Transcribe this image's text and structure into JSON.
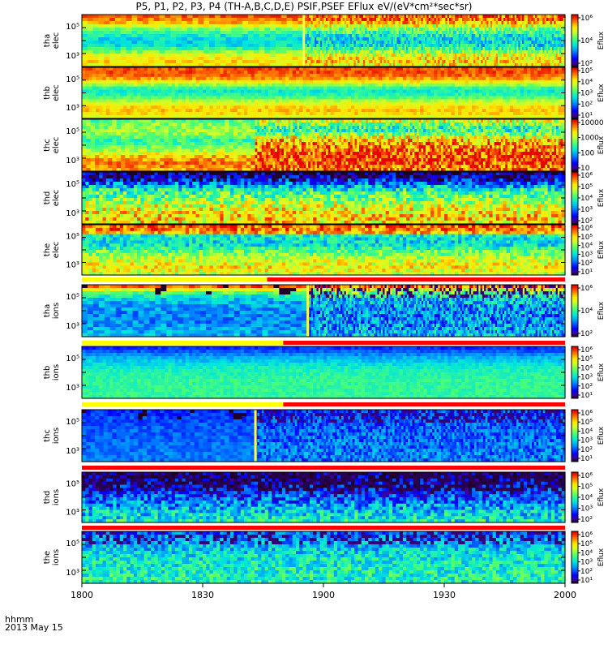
{
  "title": "P5, P1, P2, P3, P4 (TH-A,B,C,D,E) PSIF,PSEF EFlux eV/(eV*cm²*sec*sr)",
  "footer": {
    "time_label": "hhmm",
    "date_label": "2013 May 15"
  },
  "chart_data": {
    "type": "heatmap",
    "x": {
      "label": "hhmm",
      "ticks": [
        "1800",
        "1830",
        "1900",
        "1930",
        "2000"
      ],
      "range_minutes": [
        0,
        120
      ]
    },
    "panels": [
      {
        "id": "tha-elec",
        "ylabel": [
          "tha",
          "elec"
        ],
        "yticks": [
          "10⁵",
          "10³"
        ],
        "cb_label": "Eflux",
        "cb_ticks": [
          "10⁶",
          "10⁴",
          "10²"
        ],
        "mode": 0,
        "change_min": 55,
        "noise": 0.25,
        "profile": [
          0.9,
          0.88,
          0.82,
          0.72,
          0.6,
          0.52,
          0.45,
          0.42,
          0.4,
          0.42,
          0.5,
          0.6,
          0.7,
          0.75,
          0.78,
          0.75
        ]
      },
      {
        "id": "thb-elec",
        "ylabel": [
          "thb",
          "elec"
        ],
        "yticks": [
          "10⁵",
          "10³"
        ],
        "cb_label": "Eflux",
        "cb_ticks": [
          "10⁵",
          "10⁴",
          "10³",
          "10²",
          "10¹"
        ],
        "mode": 0,
        "change_min": -1,
        "noise": 0.1,
        "profile": [
          0.92,
          0.92,
          0.9,
          0.85,
          0.75,
          0.62,
          0.5,
          0.45,
          0.48,
          0.55,
          0.65,
          0.72,
          0.78,
          0.8,
          0.78,
          0.72
        ]
      },
      {
        "id": "thc-elec",
        "ylabel": [
          "thc",
          "elec"
        ],
        "yticks": [
          "10⁵",
          "10³"
        ],
        "cb_label": "Eflux",
        "cb_ticks": [
          "10000",
          "1000",
          "100",
          "10"
        ],
        "mode": 1,
        "change_min": 43,
        "noise": 0.3,
        "profile": [
          0.55,
          0.6,
          0.6,
          0.62,
          0.6,
          0.55,
          0.5,
          0.52,
          0.58,
          0.65,
          0.72,
          0.8,
          0.85,
          0.88,
          0.86,
          0.82
        ],
        "profile_after": [
          0.7,
          0.6,
          0.5,
          0.5,
          0.6,
          0.72,
          0.8,
          0.85,
          0.88,
          0.9,
          0.92,
          0.94,
          0.95,
          0.94,
          0.92,
          0.9
        ]
      },
      {
        "id": "thd-elec",
        "ylabel": [
          "thd",
          "elec"
        ],
        "yticks": [
          "10⁵",
          "10³"
        ],
        "cb_label": "Eflux",
        "cb_ticks": [
          "10⁶",
          "10⁵",
          "10⁴",
          "10³",
          "10²"
        ],
        "mode": 0,
        "change_min": -1,
        "noise": 0.3,
        "profile": [
          0.05,
          0.08,
          0.15,
          0.25,
          0.35,
          0.45,
          0.52,
          0.55,
          0.6,
          0.65,
          0.7,
          0.72,
          0.75,
          0.78,
          0.78,
          0.75
        ]
      },
      {
        "id": "the-elec",
        "ylabel": [
          "the",
          "elec"
        ],
        "yticks": [
          "10⁵",
          "10³"
        ],
        "cb_label": "Eflux",
        "cb_ticks": [
          "10⁶",
          "10⁵",
          "10⁴",
          "10³",
          "10²",
          "10¹"
        ],
        "mode": 0,
        "change_min": -1,
        "noise": 0.22,
        "profile": [
          0.9,
          0.88,
          0.82,
          0.45,
          0.42,
          0.4,
          0.42,
          0.5,
          0.55,
          0.6,
          0.65,
          0.7,
          0.72,
          0.75,
          0.72,
          0.68
        ]
      },
      {
        "id": "tha-ions",
        "ylabel": [
          "tha",
          "ions"
        ],
        "yticks": [
          "10⁵",
          "10³"
        ],
        "cb_label": "Eflux",
        "cb_ticks": [
          "10⁶",
          "10⁴",
          "10²"
        ],
        "mode": 2,
        "change_min": 56,
        "noise": 0.3,
        "profile": [
          0.9,
          0.7,
          0.55,
          0.45,
          0.38,
          0.35,
          0.33,
          0.32,
          0.3,
          0.3,
          0.3,
          0.3,
          0.32,
          0.33,
          0.34,
          0.35
        ]
      },
      {
        "id": "thb-ions",
        "ylabel": [
          "thb",
          "ions"
        ],
        "yticks": [
          "10⁵",
          "10³"
        ],
        "cb_label": "Eflux",
        "cb_ticks": [
          "10⁶",
          "10⁵",
          "10⁴",
          "10³",
          "10²",
          "10¹"
        ],
        "mode": 0,
        "change_min": -1,
        "noise": 0.08,
        "profile": [
          0.2,
          0.25,
          0.3,
          0.35,
          0.38,
          0.42,
          0.45,
          0.47,
          0.48,
          0.49,
          0.5,
          0.5,
          0.5,
          0.5,
          0.5,
          0.5
        ]
      },
      {
        "id": "thc-ions",
        "ylabel": [
          "thc",
          "ions"
        ],
        "yticks": [
          "10⁵",
          "10³"
        ],
        "cb_label": "Eflux",
        "cb_ticks": [
          "10⁶",
          "10⁵",
          "10⁴",
          "10³",
          "10²",
          "10¹"
        ],
        "mode": 2,
        "change_min": 43,
        "noise": 0.2,
        "profile": [
          0.2,
          0.2,
          0.22,
          0.22,
          0.24,
          0.24,
          0.25,
          0.25,
          0.26,
          0.26,
          0.27,
          0.27,
          0.28,
          0.28,
          0.28,
          0.28
        ]
      },
      {
        "id": "thd-ions",
        "ylabel": [
          "thd",
          "ions"
        ],
        "yticks": [
          "10⁵",
          "10³"
        ],
        "cb_label": "Eflux",
        "cb_ticks": [
          "10⁶",
          "10⁵",
          "10⁴",
          "10³",
          "10²"
        ],
        "mode": 3,
        "change_min": -1,
        "noise": 0.28,
        "profile": [
          0.05,
          0.05,
          0.08,
          0.1,
          0.12,
          0.15,
          0.18,
          0.22,
          0.25,
          0.28,
          0.32,
          0.35,
          0.38,
          0.4,
          0.42,
          0.45
        ]
      },
      {
        "id": "the-ions",
        "ylabel": [
          "the",
          "ions"
        ],
        "yticks": [
          "10⁵",
          "10³"
        ],
        "cb_label": "Eflux",
        "cb_ticks": [
          "10⁶",
          "10⁵",
          "10⁴",
          "10³",
          "10²",
          "10¹"
        ],
        "mode": 2,
        "change_min": -1,
        "noise": 0.22,
        "profile": [
          0.25,
          0.28,
          0.3,
          0.33,
          0.35,
          0.38,
          0.4,
          0.42,
          0.43,
          0.44,
          0.45,
          0.46,
          0.46,
          0.47,
          0.47,
          0.47
        ]
      }
    ],
    "mode_bars": [
      {
        "after_panel": 4,
        "yellow_until_min": 46
      },
      {
        "after_panel": 5,
        "yellow_until_min": 50
      },
      {
        "after_panel": 6,
        "yellow_until_min": 50
      },
      {
        "after_panel": 7,
        "yellow_until_min": 0
      },
      {
        "after_panel": 8,
        "yellow_until_min": 0
      }
    ],
    "colors": {
      "mode_slow": "#ffff00",
      "mode_fast": "#ff0000"
    }
  }
}
